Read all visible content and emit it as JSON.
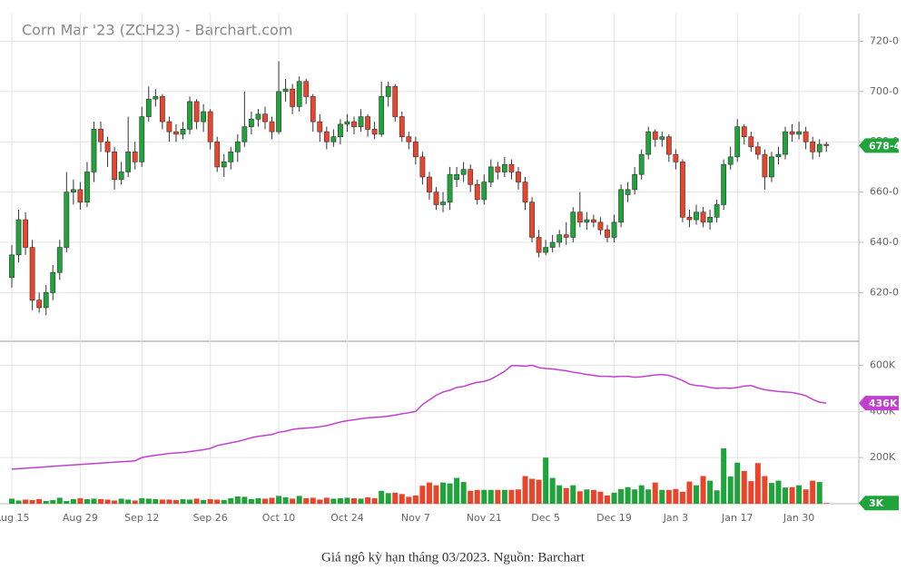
{
  "chart_data": [
    {
      "type": "candlestick",
      "title": "Corn Mar '23 (ZCH23) - Barchart.com",
      "categories": [
        "Aug 15",
        null,
        null,
        null,
        null,
        null,
        null,
        null,
        null,
        null,
        "Aug 29",
        null,
        null,
        null,
        null,
        null,
        null,
        null,
        null,
        "Sep 12",
        null,
        null,
        null,
        null,
        null,
        null,
        null,
        null,
        null,
        "Sep 26",
        null,
        null,
        null,
        null,
        null,
        null,
        null,
        null,
        null,
        "Oct 10",
        null,
        null,
        null,
        null,
        null,
        null,
        null,
        null,
        null,
        "Oct 24",
        null,
        null,
        null,
        null,
        null,
        null,
        null,
        null,
        null,
        "Nov 7",
        null,
        null,
        null,
        null,
        null,
        null,
        null,
        null,
        null,
        "Nov 21",
        null,
        null,
        null,
        null,
        null,
        null,
        null,
        null,
        "Dec 5",
        null,
        null,
        null,
        null,
        null,
        null,
        null,
        null,
        null,
        "Dec 19",
        null,
        null,
        null,
        null,
        null,
        null,
        null,
        null,
        "Jan 3",
        null,
        null,
        null,
        null,
        null,
        null,
        null,
        null,
        "Jan 17",
        null,
        null,
        null,
        null,
        null,
        null,
        null,
        null,
        "Jan 30",
        null,
        null,
        null,
        null
      ],
      "open": [
        626,
        635,
        649,
        638,
        617,
        614,
        620,
        628,
        638,
        660,
        661,
        656,
        668,
        685,
        680,
        676,
        665,
        668,
        676,
        672,
        690,
        697,
        698,
        688,
        684,
        683,
        685,
        696,
        688,
        692,
        680,
        670,
        672,
        676,
        680,
        686,
        689,
        691,
        688,
        684,
        700,
        701,
        694,
        704,
        698,
        688,
        684,
        680,
        682,
        687,
        688,
        686,
        690,
        685,
        683,
        698,
        702,
        690,
        682,
        680,
        674,
        666,
        660,
        655,
        656,
        665,
        667,
        669,
        663,
        657,
        664,
        670,
        668,
        671,
        668,
        664,
        656,
        642,
        636,
        638,
        640,
        643,
        642,
        652,
        648,
        649,
        648,
        645,
        642,
        648,
        659,
        661,
        667,
        675,
        684,
        681,
        682,
        675,
        672,
        650,
        649,
        652,
        648,
        650,
        655,
        671,
        674,
        686,
        682,
        678,
        675,
        666,
        674,
        675,
        684,
        683,
        684,
        680,
        676,
        679
      ],
      "high": [
        639,
        653,
        652,
        641,
        620,
        623,
        631,
        641,
        668,
        665,
        664,
        672,
        688,
        688,
        682,
        678,
        672,
        690,
        680,
        694,
        702,
        701,
        699,
        690,
        687,
        688,
        698,
        697,
        695,
        693,
        682,
        675,
        678,
        683,
        700,
        692,
        693,
        694,
        690,
        712,
        705,
        703,
        706,
        705,
        699,
        691,
        686,
        685,
        689,
        691,
        690,
        693,
        691,
        688,
        704,
        704,
        703,
        692,
        684,
        682,
        676,
        668,
        662,
        660,
        670,
        670,
        672,
        671,
        665,
        667,
        673,
        672,
        674,
        673,
        670,
        666,
        658,
        645,
        641,
        643,
        645,
        648,
        654,
        660,
        652,
        651,
        650,
        647,
        651,
        663,
        664,
        670,
        677,
        686,
        685,
        684,
        683,
        677,
        673,
        653,
        655,
        654,
        653,
        657,
        673,
        678,
        689,
        687,
        684,
        680,
        677,
        676,
        678,
        686,
        687,
        688,
        686,
        682,
        681,
        680
      ],
      "low": [
        622,
        632,
        635,
        613,
        612,
        611,
        617,
        625,
        636,
        655,
        653,
        654,
        664,
        676,
        670,
        661,
        663,
        666,
        669,
        670,
        688,
        694,
        685,
        680,
        680,
        681,
        683,
        685,
        684,
        677,
        668,
        666,
        669,
        672,
        678,
        683,
        686,
        685,
        681,
        683,
        696,
        691,
        692,
        695,
        684,
        680,
        677,
        678,
        679,
        684,
        683,
        684,
        682,
        681,
        682,
        694,
        688,
        680,
        677,
        671,
        663,
        657,
        653,
        652,
        653,
        662,
        664,
        660,
        655,
        655,
        662,
        665,
        666,
        665,
        661,
        653,
        640,
        634,
        635,
        636,
        638,
        639,
        640,
        646,
        645,
        646,
        643,
        640,
        640,
        646,
        656,
        659,
        665,
        673,
        678,
        678,
        672,
        669,
        648,
        646,
        647,
        646,
        645,
        648,
        653,
        669,
        672,
        679,
        676,
        673,
        661,
        664,
        671,
        673,
        680,
        681,
        677,
        673,
        674,
        676
      ],
      "close": [
        635,
        649,
        638,
        617,
        614,
        620,
        628,
        638,
        660,
        661,
        656,
        668,
        685,
        680,
        676,
        665,
        668,
        676,
        672,
        690,
        697,
        698,
        688,
        684,
        683,
        685,
        696,
        688,
        692,
        680,
        670,
        672,
        676,
        680,
        686,
        689,
        691,
        688,
        684,
        700,
        701,
        694,
        704,
        698,
        688,
        684,
        680,
        682,
        687,
        688,
        686,
        690,
        685,
        683,
        698,
        702,
        690,
        682,
        680,
        674,
        666,
        660,
        655,
        656,
        667,
        667,
        669,
        663,
        657,
        664,
        670,
        668,
        671,
        668,
        664,
        656,
        642,
        636,
        638,
        640,
        643,
        642,
        652,
        648,
        649,
        648,
        645,
        642,
        648,
        661,
        661,
        667,
        675,
        684,
        681,
        682,
        675,
        672,
        650,
        649,
        652,
        648,
        650,
        655,
        671,
        674,
        686,
        682,
        678,
        675,
        666,
        674,
        675,
        684,
        683,
        684,
        680,
        676,
        679,
        678.5
      ],
      "last_price_label": {
        "value": 678.5,
        "label": "678-4"
      },
      "up_color": "#1fa33b",
      "down_color": "#e8452c",
      "ylim": [
        601,
        731
      ],
      "yticks": [
        {
          "value": 620,
          "label": "620-0"
        },
        {
          "value": 640,
          "label": "640-0"
        },
        {
          "value": 660,
          "label": "660-0"
        },
        {
          "value": 680,
          "label": "680-0"
        },
        {
          "value": 700,
          "label": "700-0"
        },
        {
          "value": 720,
          "label": "720-0"
        }
      ],
      "grid": true
    },
    {
      "type": "volume",
      "volume": {
        "values": [
          22,
          14,
          18,
          16,
          20,
          12,
          16,
          26,
          12,
          20,
          24,
          20,
          22,
          20,
          18,
          14,
          22,
          18,
          14,
          24,
          22,
          20,
          18,
          18,
          16,
          20,
          18,
          22,
          16,
          20,
          18,
          16,
          24,
          32,
          30,
          20,
          24,
          22,
          26,
          34,
          28,
          22,
          34,
          24,
          26,
          18,
          26,
          22,
          24,
          26,
          24,
          22,
          28,
          24,
          56,
          46,
          48,
          42,
          30,
          36,
          78,
          92,
          80,
          92,
          88,
          112,
          94,
          56,
          60,
          60,
          60,
          60,
          60,
          60,
          62,
          120,
          108,
          104,
          200,
          112,
          80,
          68,
          80,
          54,
          62,
          60,
          52,
          36,
          48,
          64,
          72,
          62,
          80,
          62,
          92,
          60,
          60,
          64,
          52,
          96,
          80,
          120,
          100,
          58,
          240,
          118,
          178,
          142,
          98,
          176,
          120,
          90,
          100,
          70,
          72,
          80,
          62,
          100,
          94,
          3
        ],
        "last_label": {
          "value": 3,
          "label": "3K"
        },
        "up_color": "#1fa33b",
        "down_color": "#e8452c"
      },
      "open_interest": {
        "values": [
          150,
          152,
          154,
          156,
          158,
          160,
          162,
          164,
          166,
          168,
          170,
          172,
          174,
          176,
          178,
          180,
          182,
          184,
          186,
          200,
          206,
          210,
          214,
          218,
          220,
          222,
          226,
          230,
          234,
          240,
          252,
          258,
          264,
          270,
          278,
          286,
          292,
          296,
          300,
          310,
          314,
          322,
          326,
          328,
          330,
          334,
          338,
          346,
          354,
          360,
          364,
          368,
          372,
          374,
          376,
          380,
          384,
          390,
          394,
          400,
          430,
          450,
          470,
          484,
          492,
          504,
          508,
          518,
          526,
          530,
          540,
          556,
          574,
          598,
          598,
          596,
          600,
          590,
          586,
          584,
          580,
          576,
          570,
          566,
          560,
          556,
          552,
          552,
          550,
          552,
          552,
          548,
          550,
          554,
          558,
          560,
          556,
          546,
          534,
          518,
          512,
          510,
          504,
          500,
          502,
          500,
          504,
          510,
          512,
          502,
          494,
          490,
          486,
          484,
          482,
          476,
          468,
          452,
          440,
          436
        ],
        "last_label": {
          "value": 436,
          "label": "436K"
        },
        "color": "#c23fd0"
      },
      "ylim": [
        0,
        700
      ],
      "yticks": [
        {
          "value": 200,
          "label": "200K"
        },
        {
          "value": 400,
          "label": "400K"
        },
        {
          "value": 600,
          "label": "600K"
        }
      ],
      "grid": true
    }
  ],
  "caption": "Giá ngô kỳ hạn tháng 03/2023. Nguồn: Barchart"
}
